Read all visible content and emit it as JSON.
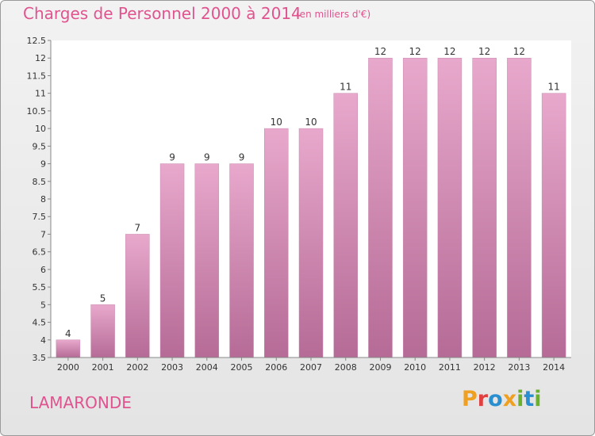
{
  "header": {
    "title": "Charges de Personnel 2000 à 2014",
    "subtitle": "(en milliers d'€)"
  },
  "footer": {
    "commune": "LAMARONDE",
    "logo_text": "Proxiti"
  },
  "colors": {
    "accent": "#e0538f",
    "bar_top": "#e8a8cc",
    "bar_bottom": "#b56b96",
    "logo": [
      "#f0a020",
      "#e04040",
      "#2a8fd0",
      "#f0a020",
      "#6cb030",
      "#2a8fd0",
      "#6cb030"
    ]
  },
  "chart_data": {
    "type": "bar",
    "categories": [
      "2000",
      "2001",
      "2002",
      "2003",
      "2004",
      "2005",
      "2006",
      "2007",
      "2008",
      "2009",
      "2010",
      "2011",
      "2012",
      "2013",
      "2014"
    ],
    "values": [
      4,
      5,
      7,
      9,
      9,
      9,
      10,
      10,
      11,
      12,
      12,
      12,
      12,
      12,
      11
    ],
    "value_labels": [
      "4",
      "5",
      "7",
      "9",
      "9",
      "9",
      "10",
      "10",
      "11",
      "12",
      "12",
      "12",
      "12",
      "12",
      "11"
    ],
    "y_ticks": [
      "3.5",
      "4",
      "4.5",
      "5",
      "5.5",
      "6",
      "6.5",
      "7",
      "7.5",
      "8",
      "8.5",
      "9",
      "9.5",
      "10",
      "10.5",
      "11",
      "11.5",
      "12",
      "12.5"
    ],
    "ylim": [
      3.5,
      12.5
    ],
    "title": "Charges de Personnel 2000 à 2014",
    "xlabel": "",
    "ylabel": "",
    "grid": false,
    "legend": "none"
  }
}
